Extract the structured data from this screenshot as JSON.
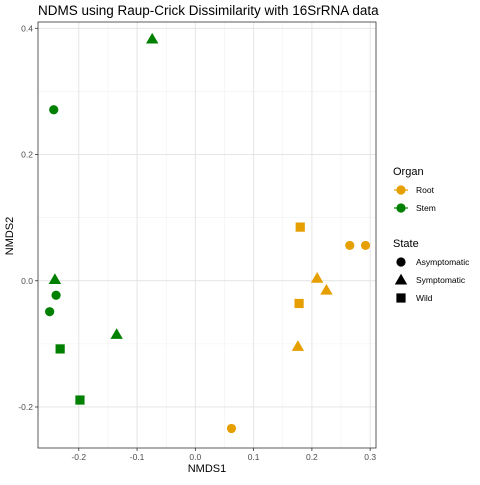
{
  "chart_data": {
    "type": "scatter",
    "title": "NDMS using Raup-Crick Dissimilarity with 16SrRNA data",
    "xlabel": "NMDS1",
    "ylabel": "NMDS2",
    "xlim": [
      -0.27,
      0.31
    ],
    "ylim": [
      -0.265,
      0.41
    ],
    "xticks": [
      -0.2,
      -0.1,
      0.0,
      0.1,
      0.2,
      0.3
    ],
    "yticks": [
      -0.2,
      0.0,
      0.2,
      0.4
    ],
    "xtick_labels": [
      "-0.2",
      "-0.1",
      "0.0",
      "0.1",
      "0.2",
      "0.3"
    ],
    "ytick_labels": [
      "-0.2",
      "0.0",
      "0.2",
      "0.4"
    ],
    "grid": true,
    "theme": "bw",
    "legend_placement": "right",
    "color_legend": {
      "title": "Organ",
      "entries": [
        {
          "label": "Root",
          "color": "#E69F00"
        },
        {
          "label": "Stem",
          "color": "#008000"
        }
      ]
    },
    "shape_legend": {
      "title": "State",
      "entries": [
        {
          "label": "Asymptomatic",
          "shape": "circle"
        },
        {
          "label": "Symptomatic",
          "shape": "triangle"
        },
        {
          "label": "Wild",
          "shape": "square"
        }
      ]
    },
    "points": [
      {
        "x": -0.074,
        "y": 0.383,
        "organ": "Stem",
        "state": "Symptomatic"
      },
      {
        "x": -0.243,
        "y": 0.271,
        "organ": "Stem",
        "state": "Asymptomatic"
      },
      {
        "x": -0.241,
        "y": 0.002,
        "organ": "Stem",
        "state": "Symptomatic"
      },
      {
        "x": -0.239,
        "y": -0.023,
        "organ": "Stem",
        "state": "Asymptomatic"
      },
      {
        "x": -0.25,
        "y": -0.049,
        "organ": "Stem",
        "state": "Asymptomatic"
      },
      {
        "x": -0.232,
        "y": -0.108,
        "organ": "Stem",
        "state": "Wild"
      },
      {
        "x": -0.135,
        "y": -0.085,
        "organ": "Stem",
        "state": "Symptomatic"
      },
      {
        "x": -0.198,
        "y": -0.189,
        "organ": "Stem",
        "state": "Wild"
      },
      {
        "x": 0.18,
        "y": 0.085,
        "organ": "Root",
        "state": "Wild"
      },
      {
        "x": 0.265,
        "y": 0.056,
        "organ": "Root",
        "state": "Asymptomatic"
      },
      {
        "x": 0.292,
        "y": 0.056,
        "organ": "Root",
        "state": "Asymptomatic"
      },
      {
        "x": 0.209,
        "y": 0.004,
        "organ": "Root",
        "state": "Symptomatic"
      },
      {
        "x": 0.225,
        "y": -0.015,
        "organ": "Root",
        "state": "Symptomatic"
      },
      {
        "x": 0.178,
        "y": -0.036,
        "organ": "Root",
        "state": "Wild"
      },
      {
        "x": 0.176,
        "y": -0.104,
        "organ": "Root",
        "state": "Symptomatic"
      },
      {
        "x": 0.062,
        "y": -0.234,
        "organ": "Root",
        "state": "Asymptomatic"
      }
    ]
  }
}
